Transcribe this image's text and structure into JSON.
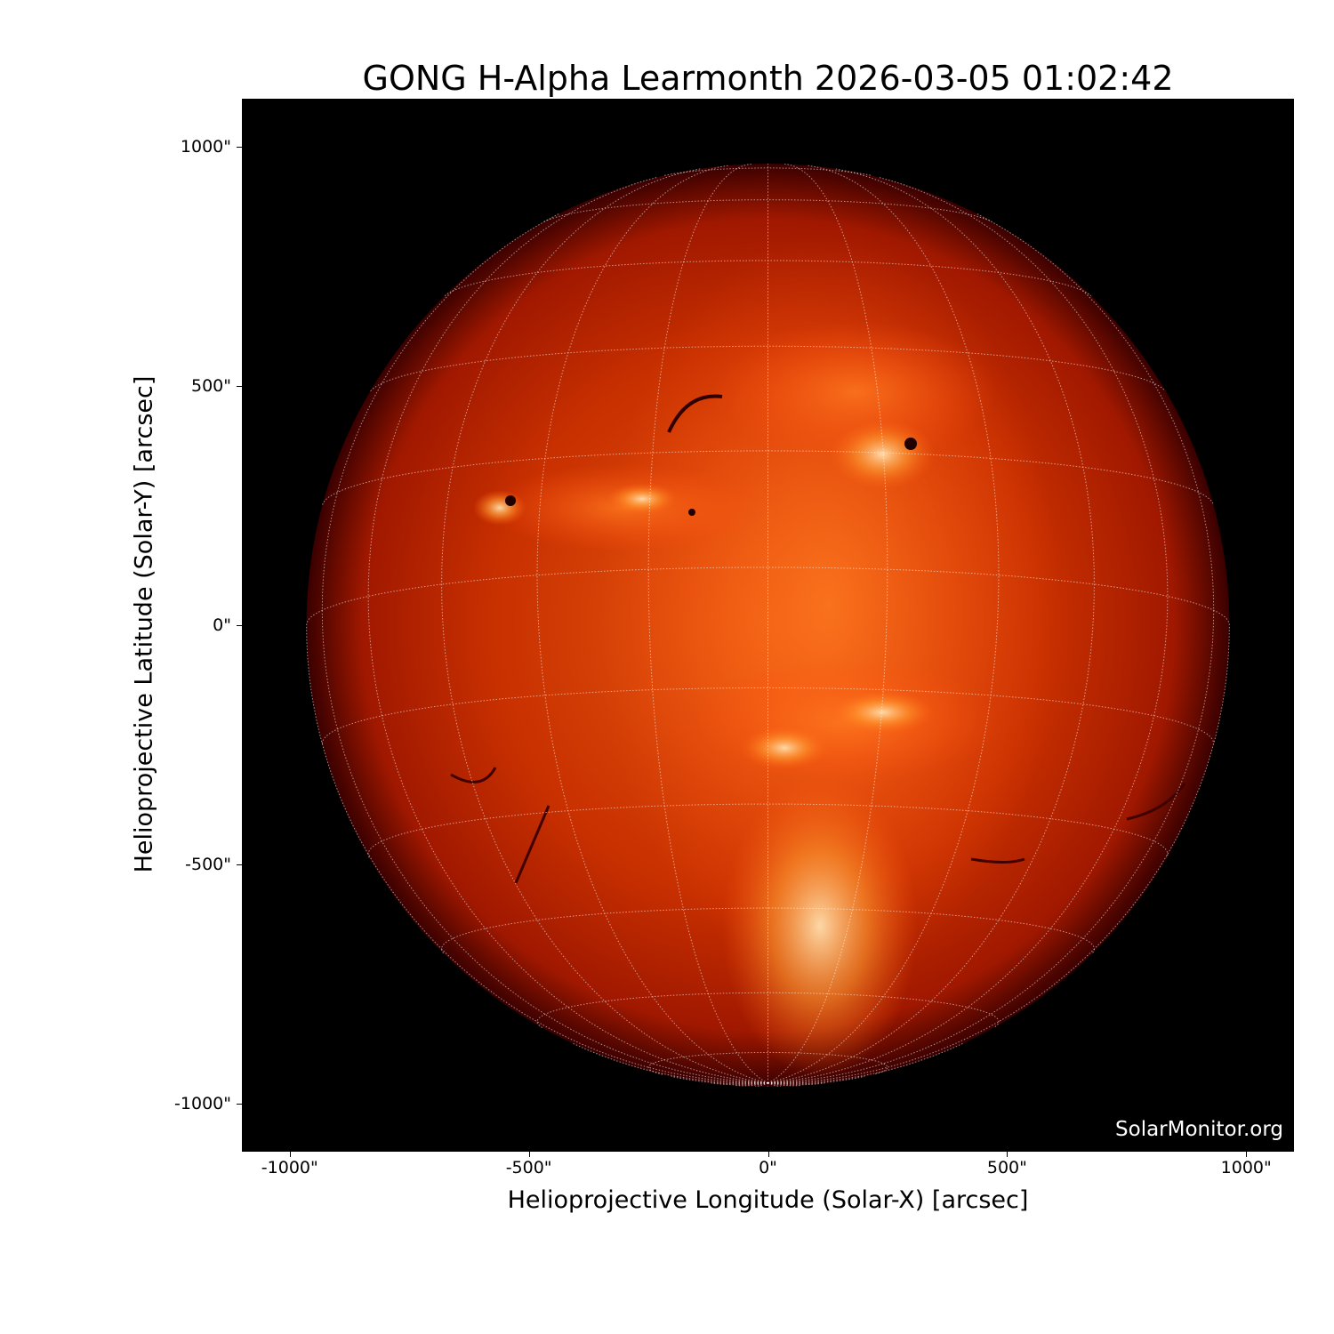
{
  "title": "GONG H-Alpha Learmonth 2026-03-05 01:02:42",
  "xlabel": "Helioprojective Longitude (Solar-X) [arcsec]",
  "ylabel": "Helioprojective Latitude (Solar-Y) [arcsec]",
  "x_ticks": [
    {
      "value": -1000,
      "label": "-1000\""
    },
    {
      "value": -500,
      "label": "-500\""
    },
    {
      "value": 0,
      "label": "0\""
    },
    {
      "value": 500,
      "label": "500\""
    },
    {
      "value": 1000,
      "label": "1000\""
    }
  ],
  "y_ticks": [
    {
      "value": 1000,
      "label": "1000\""
    },
    {
      "value": 500,
      "label": "500\""
    },
    {
      "value": 0,
      "label": "0\""
    },
    {
      "value": -500,
      "label": "-500\""
    },
    {
      "value": -1000,
      "label": "-1000\""
    }
  ],
  "xlim": [
    -1100,
    1100
  ],
  "ylim": [
    -1100,
    1100
  ],
  "solar_radius_arcsec": 965,
  "grid_spacing_deg": 15,
  "colormap": "gong-halpha red-orange",
  "colors": {
    "limb": "#5a0000",
    "disk": "#c02000",
    "bright": "#ffb040",
    "background": "#000000",
    "grid": "#ffffff"
  },
  "watermark": "SolarMonitor.org"
}
